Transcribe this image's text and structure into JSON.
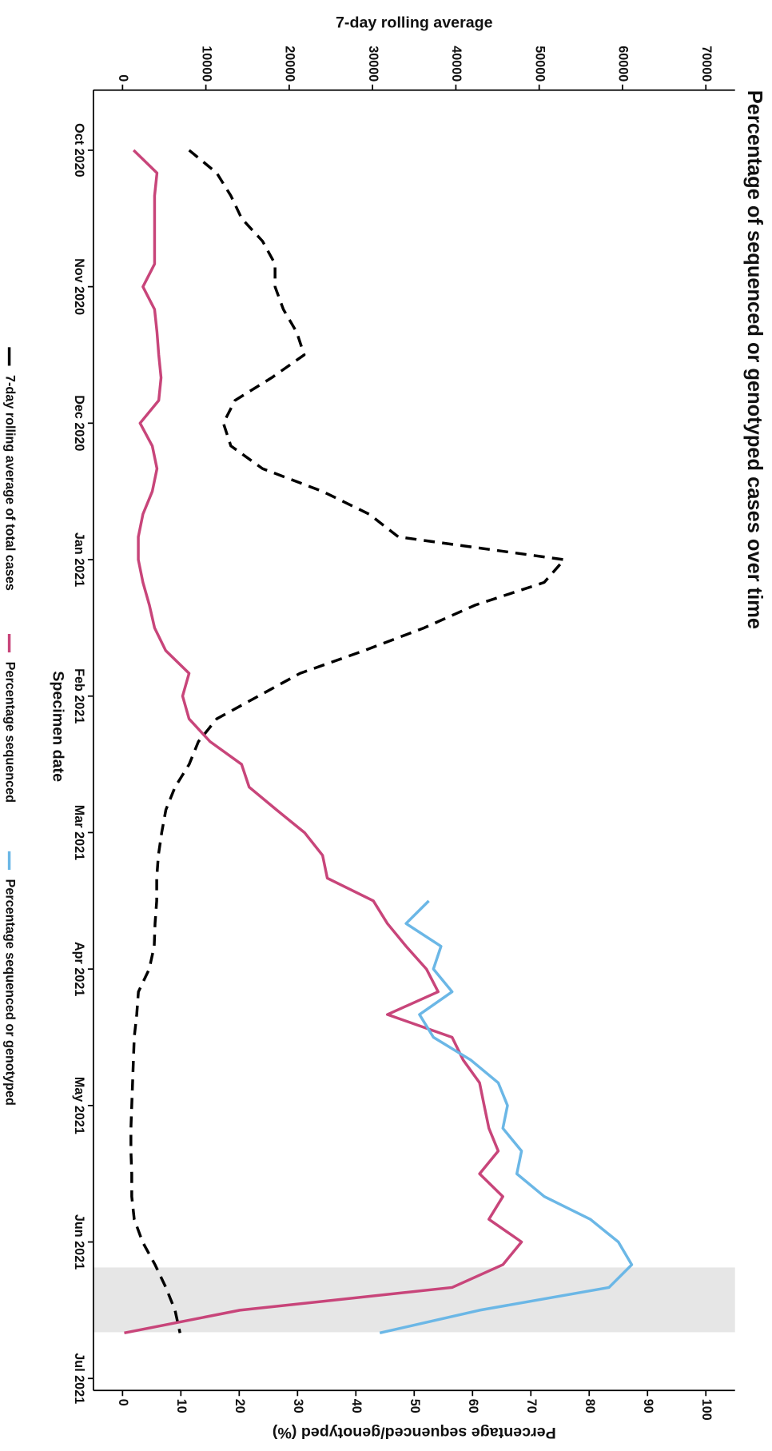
{
  "chart_data": {
    "type": "line",
    "title": "Percentage of sequenced or genotyped cases over time",
    "x_label": "Specimen date",
    "y_label": "7-day rolling average",
    "y2_label": "Percentage sequenced/genotyped (%)",
    "categories": [
      "Oct 2020",
      null,
      null,
      null,
      null,
      null,
      "Nov 2020",
      null,
      null,
      null,
      null,
      null,
      "Dec 2020",
      null,
      null,
      null,
      null,
      null,
      "Jan 2021",
      null,
      null,
      null,
      null,
      null,
      "Feb 2021",
      null,
      null,
      null,
      null,
      null,
      "Mar 2021",
      null,
      null,
      null,
      null,
      null,
      "Apr 2021",
      null,
      null,
      null,
      null,
      null,
      "May 2021",
      null,
      null,
      null,
      null,
      null,
      "Jun 2021",
      null,
      null,
      null,
      null,
      null,
      "Jul 2021"
    ],
    "ylim": [
      -3500,
      73500
    ],
    "yticks": [
      0,
      10000,
      20000,
      30000,
      40000,
      50000,
      60000,
      70000
    ],
    "y2lim": [
      -5,
      105
    ],
    "y2ticks": [
      0,
      10,
      20,
      30,
      40,
      50,
      60,
      70,
      80,
      90,
      100
    ],
    "legend": "bottom",
    "series": [
      {
        "name": "7-day rolling average of total cases",
        "color": "#000000",
        "dash": true,
        "values": [
          8000,
          11300,
          13000,
          14300,
          16800,
          18300,
          18300,
          19300,
          20900,
          21800,
          17900,
          13500,
          12100,
          13000,
          16800,
          24000,
          29600,
          33100,
          53000,
          50600,
          42300,
          36200,
          29000,
          21300,
          16300,
          11300,
          9100,
          8000,
          6300,
          5200,
          4700,
          4300,
          4100,
          4100,
          3900,
          3800,
          3200,
          1900,
          1700,
          1400,
          1300,
          1200,
          1100,
          1000,
          1000,
          1100,
          1100,
          1400,
          2400,
          3900,
          5200,
          6300,
          6900,
          null,
          null
        ]
      },
      {
        "name": "Percentage sequenced",
        "color": "#c8457a",
        "dash": false,
        "axis": "y2",
        "values": [
          1.9,
          5.9,
          5.5,
          5.5,
          5.5,
          5.5,
          3.5,
          5.5,
          5.9,
          6.2,
          6.6,
          6.2,
          3.0,
          5.1,
          5.9,
          5.1,
          3.5,
          2.7,
          2.7,
          3.5,
          4.6,
          5.5,
          7.4,
          11.4,
          10.3,
          11.4,
          15.0,
          20.4,
          21.7,
          26.4,
          31.2,
          34.3,
          35.1,
          43.0,
          45.4,
          48.6,
          52.1,
          54.1,
          45.4,
          56.5,
          58.4,
          61.2,
          62.0,
          62.8,
          64.4,
          61.2,
          65.2,
          62.8,
          68.4,
          65.2,
          56.5,
          20.1,
          0.3,
          null,
          null
        ]
      },
      {
        "name": "Percentage sequenced or genotyped",
        "color": "#6bb7e6",
        "dash": false,
        "axis": "y2",
        "values": [
          null,
          null,
          null,
          null,
          null,
          null,
          null,
          null,
          null,
          null,
          null,
          null,
          null,
          null,
          null,
          null,
          null,
          null,
          null,
          null,
          null,
          null,
          null,
          null,
          null,
          null,
          null,
          null,
          null,
          null,
          null,
          null,
          null,
          52.5,
          48.6,
          54.6,
          53.3,
          56.5,
          50.9,
          53.3,
          59.7,
          64.4,
          66.0,
          65.2,
          68.4,
          67.6,
          72.3,
          80.2,
          85.0,
          87.3,
          83.4,
          61.2,
          44.1,
          null,
          null
        ]
      }
    ]
  }
}
